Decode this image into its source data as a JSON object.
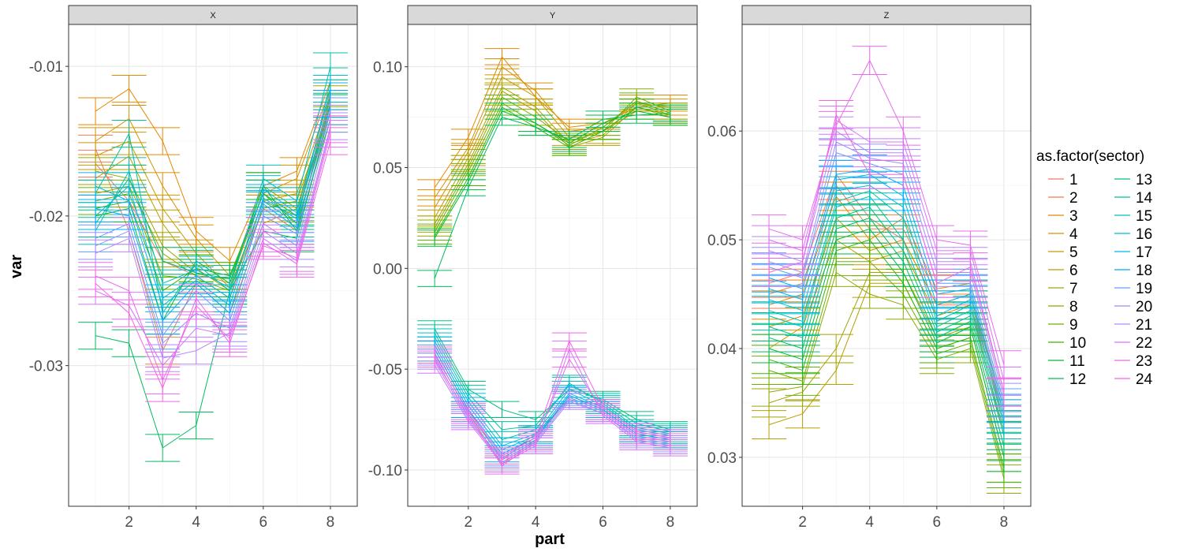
{
  "chart_data": {
    "type": "line",
    "subtype": "faceted line chart with error bars",
    "x_label": "part",
    "y_label": "var",
    "legend_title": "as.factor(sector)",
    "legend_placement": "right",
    "grid": true,
    "x_ticks": [
      "2",
      "4",
      "6",
      "8"
    ],
    "x_range": [
      0.2,
      8.8
    ],
    "legend": {
      "labels": [
        "1",
        "2",
        "3",
        "4",
        "5",
        "6",
        "7",
        "8",
        "9",
        "10",
        "11",
        "12",
        "13",
        "14",
        "15",
        "16",
        "17",
        "18",
        "19",
        "20",
        "21",
        "22",
        "23",
        "24"
      ],
      "colors": [
        "#F8766D",
        "#EF7F49",
        "#E58700",
        "#D89000",
        "#C99800",
        "#B79F00",
        "#A3A500",
        "#8BAB00",
        "#6BB100",
        "#39B600",
        "#00BA38",
        "#00BD5C",
        "#00BF7D",
        "#00C19A",
        "#00C0B5",
        "#00BCD8",
        "#00B4F0",
        "#00A9FF",
        "#619CFF",
        "#9590FF",
        "#B983FF",
        "#D575FE",
        "#E96BEC",
        "#F564E3"
      ]
    },
    "facets": [
      {
        "name": "X",
        "ylim": [
          -0.0394,
          -0.0072
        ],
        "y_ticks": [
          -0.03,
          -0.02,
          -0.01
        ],
        "y_tick_labels": [
          "-0.03",
          "-0.02",
          "-0.01"
        ],
        "errorbar_halfwidth": 0.0009,
        "series": [
          [
            -0.0165,
            -0.019,
            -0.023,
            -0.024,
            -0.0255,
            -0.0195,
            -0.021,
            -0.012
          ],
          [
            -0.0155,
            -0.021,
            -0.029,
            -0.0245,
            -0.0265,
            -0.0205,
            -0.0195,
            -0.013
          ],
          [
            -0.013,
            -0.0115,
            -0.015,
            -0.021,
            -0.023,
            -0.018,
            -0.017,
            -0.011
          ],
          [
            -0.015,
            -0.0135,
            -0.018,
            -0.0215,
            -0.024,
            -0.0185,
            -0.0175,
            -0.0115
          ],
          [
            -0.016,
            -0.015,
            -0.0195,
            -0.0225,
            -0.0248,
            -0.019,
            -0.0185,
            -0.012
          ],
          [
            -0.0175,
            -0.016,
            -0.0205,
            -0.0235,
            -0.025,
            -0.0195,
            -0.019,
            -0.0125
          ],
          [
            -0.017,
            -0.0175,
            -0.022,
            -0.0238,
            -0.0245,
            -0.0185,
            -0.02,
            -0.0122
          ],
          [
            -0.0185,
            -0.018,
            -0.0225,
            -0.024,
            -0.0242,
            -0.018,
            -0.0195,
            -0.0118
          ],
          [
            -0.019,
            -0.0185,
            -0.024,
            -0.0242,
            -0.025,
            -0.019,
            -0.02,
            -0.0125
          ],
          [
            -0.0195,
            -0.019,
            -0.025,
            -0.0235,
            -0.024,
            -0.0185,
            -0.0205,
            -0.013
          ],
          [
            -0.02,
            -0.0195,
            -0.027,
            -0.023,
            -0.0245,
            -0.018,
            -0.021,
            -0.0135
          ],
          [
            -0.028,
            -0.0285,
            -0.0355,
            -0.034,
            -0.025,
            -0.021,
            -0.0215,
            -0.013
          ],
          [
            -0.0205,
            -0.0175,
            -0.023,
            -0.0238,
            -0.0242,
            -0.0185,
            -0.02,
            -0.0127
          ],
          [
            -0.0185,
            -0.0145,
            -0.0265,
            -0.0232,
            -0.025,
            -0.019,
            -0.0205,
            -0.011
          ],
          [
            -0.021,
            -0.017,
            -0.0245,
            -0.0236,
            -0.0248,
            -0.0175,
            -0.019,
            -0.01
          ],
          [
            -0.02,
            -0.018,
            -0.0255,
            -0.024,
            -0.0255,
            -0.0182,
            -0.0198,
            -0.0115
          ],
          [
            -0.018,
            -0.019,
            -0.026,
            -0.0243,
            -0.026,
            -0.0188,
            -0.0202,
            -0.012
          ],
          [
            -0.0195,
            -0.02,
            -0.027,
            -0.0245,
            -0.0265,
            -0.0192,
            -0.0208,
            -0.0125
          ],
          [
            -0.0215,
            -0.0205,
            -0.028,
            -0.025,
            -0.027,
            -0.02,
            -0.0212,
            -0.013
          ],
          [
            -0.022,
            -0.021,
            -0.0285,
            -0.0265,
            -0.0275,
            -0.0205,
            -0.022,
            -0.0135
          ],
          [
            -0.0225,
            -0.0215,
            -0.0295,
            -0.029,
            -0.0278,
            -0.021,
            -0.0225,
            -0.014
          ],
          [
            -0.025,
            -0.026,
            -0.03,
            -0.0275,
            -0.028,
            -0.0215,
            -0.023,
            -0.0145
          ],
          [
            -0.024,
            -0.025,
            -0.031,
            -0.026,
            -0.0282,
            -0.022,
            -0.0228,
            -0.0142
          ],
          [
            -0.0245,
            -0.0265,
            -0.0315,
            -0.0255,
            -0.0285,
            -0.0218,
            -0.0232,
            -0.015
          ]
        ]
      },
      {
        "name": "Y",
        "ylim": [
          -0.118,
          0.121
        ],
        "y_ticks": [
          -0.1,
          -0.05,
          0.0,
          0.05,
          0.1
        ],
        "y_tick_labels": [
          "-0.10",
          "-0.05",
          "0.00",
          "0.05",
          "0.10"
        ],
        "errorbar_halfwidth": 0.004,
        "series": [
          [
            -0.04,
            -0.07,
            -0.095,
            -0.082,
            -0.065,
            -0.068,
            -0.08,
            -0.083
          ],
          [
            -0.042,
            -0.072,
            -0.097,
            -0.085,
            -0.063,
            -0.07,
            -0.082,
            -0.085
          ],
          [
            0.04,
            0.065,
            0.105,
            0.085,
            0.07,
            0.072,
            0.08,
            0.082
          ],
          [
            0.035,
            0.06,
            0.1,
            0.088,
            0.068,
            0.07,
            0.082,
            0.08
          ],
          [
            0.03,
            0.058,
            0.095,
            0.085,
            0.065,
            0.068,
            0.078,
            0.078
          ],
          [
            0.025,
            0.055,
            0.09,
            0.08,
            0.062,
            0.066,
            0.082,
            0.076
          ],
          [
            0.022,
            0.052,
            0.088,
            0.078,
            0.06,
            0.065,
            0.08,
            0.075
          ],
          [
            0.02,
            0.05,
            0.085,
            0.075,
            0.063,
            0.068,
            0.085,
            0.078
          ],
          [
            0.018,
            0.048,
            0.082,
            0.072,
            0.061,
            0.07,
            0.083,
            0.077
          ],
          [
            0.016,
            0.045,
            0.08,
            0.07,
            0.06,
            0.068,
            0.08,
            0.076
          ],
          [
            0.015,
            0.043,
            0.078,
            0.072,
            0.062,
            0.072,
            0.078,
            0.075
          ],
          [
            -0.005,
            0.04,
            0.075,
            0.07,
            0.064,
            0.074,
            0.076,
            0.077
          ],
          [
            -0.03,
            -0.06,
            -0.07,
            -0.075,
            -0.06,
            -0.065,
            -0.075,
            -0.08
          ],
          [
            -0.032,
            -0.062,
            -0.08,
            -0.078,
            -0.058,
            -0.066,
            -0.077,
            -0.081
          ],
          [
            -0.034,
            -0.064,
            -0.085,
            -0.08,
            -0.057,
            -0.067,
            -0.079,
            -0.082
          ],
          [
            -0.036,
            -0.066,
            -0.088,
            -0.082,
            -0.06,
            -0.068,
            -0.08,
            -0.083
          ],
          [
            -0.038,
            -0.068,
            -0.09,
            -0.083,
            -0.062,
            -0.069,
            -0.081,
            -0.084
          ],
          [
            -0.04,
            -0.07,
            -0.092,
            -0.084,
            -0.063,
            -0.07,
            -0.082,
            -0.085
          ],
          [
            -0.042,
            -0.072,
            -0.094,
            -0.085,
            -0.064,
            -0.071,
            -0.083,
            -0.086
          ],
          [
            -0.044,
            -0.074,
            -0.095,
            -0.086,
            -0.065,
            -0.072,
            -0.084,
            -0.087
          ],
          [
            -0.046,
            -0.075,
            -0.096,
            -0.087,
            -0.066,
            -0.072,
            -0.085,
            -0.088
          ],
          [
            -0.048,
            -0.076,
            -0.097,
            -0.088,
            -0.04,
            -0.073,
            -0.086,
            -0.089
          ],
          [
            -0.045,
            -0.073,
            -0.098,
            -0.086,
            -0.045,
            -0.071,
            -0.083,
            -0.086
          ],
          [
            -0.043,
            -0.071,
            -0.093,
            -0.084,
            -0.036,
            -0.069,
            -0.081,
            -0.084
          ]
        ]
      },
      {
        "name": "Z",
        "ylim": [
          0.0255,
          0.0698
        ],
        "y_ticks": [
          0.03,
          0.04,
          0.05,
          0.06
        ],
        "y_tick_labels": [
          "0.03",
          "0.04",
          "0.05",
          "0.06"
        ],
        "errorbar_halfwidth": 0.0013,
        "series": [
          [
            0.046,
            0.047,
            0.056,
            0.052,
            0.05,
            0.044,
            0.044,
            0.034
          ],
          [
            0.045,
            0.046,
            0.055,
            0.051,
            0.051,
            0.045,
            0.045,
            0.0345
          ],
          [
            0.044,
            0.045,
            0.054,
            0.05,
            0.052,
            0.0455,
            0.046,
            0.035
          ],
          [
            0.042,
            0.043,
            0.052,
            0.049,
            0.05,
            0.044,
            0.045,
            0.033
          ],
          [
            0.04,
            0.042,
            0.05,
            0.048,
            0.049,
            0.043,
            0.044,
            0.032
          ],
          [
            0.033,
            0.034,
            0.038,
            0.046,
            0.046,
            0.04,
            0.041,
            0.029
          ],
          [
            0.035,
            0.036,
            0.04,
            0.047,
            0.047,
            0.041,
            0.042,
            0.03
          ],
          [
            0.036,
            0.0365,
            0.047,
            0.045,
            0.044,
            0.039,
            0.04,
            0.028
          ],
          [
            0.038,
            0.037,
            0.048,
            0.048,
            0.045,
            0.0395,
            0.0405,
            0.0285
          ],
          [
            0.039,
            0.038,
            0.049,
            0.05,
            0.046,
            0.04,
            0.041,
            0.029
          ],
          [
            0.04,
            0.039,
            0.05,
            0.051,
            0.047,
            0.0405,
            0.042,
            0.03
          ],
          [
            0.041,
            0.04,
            0.051,
            0.052,
            0.048,
            0.041,
            0.0425,
            0.031
          ],
          [
            0.042,
            0.041,
            0.052,
            0.053,
            0.049,
            0.0415,
            0.043,
            0.032
          ],
          [
            0.043,
            0.042,
            0.053,
            0.054,
            0.05,
            0.042,
            0.0435,
            0.0325
          ],
          [
            0.0435,
            0.0425,
            0.0535,
            0.0545,
            0.052,
            0.0425,
            0.044,
            0.033
          ],
          [
            0.0445,
            0.0435,
            0.0545,
            0.055,
            0.053,
            0.043,
            0.0445,
            0.0335
          ],
          [
            0.0455,
            0.0445,
            0.0555,
            0.056,
            0.054,
            0.044,
            0.045,
            0.034
          ],
          [
            0.0465,
            0.0455,
            0.056,
            0.0565,
            0.055,
            0.045,
            0.0455,
            0.0345
          ],
          [
            0.0475,
            0.0465,
            0.058,
            0.057,
            0.056,
            0.046,
            0.046,
            0.035
          ],
          [
            0.048,
            0.047,
            0.059,
            0.0575,
            0.057,
            0.047,
            0.047,
            0.0355
          ],
          [
            0.049,
            0.048,
            0.06,
            0.058,
            0.058,
            0.048,
            0.048,
            0.036
          ],
          [
            0.05,
            0.049,
            0.061,
            0.059,
            0.059,
            0.049,
            0.049,
            0.037
          ],
          [
            0.051,
            0.05,
            0.0605,
            0.0665,
            0.06,
            0.05,
            0.0495,
            0.0385
          ],
          [
            0.047,
            0.048,
            0.0615,
            0.056,
            0.056,
            0.046,
            0.0475,
            0.036
          ]
        ]
      }
    ]
  }
}
